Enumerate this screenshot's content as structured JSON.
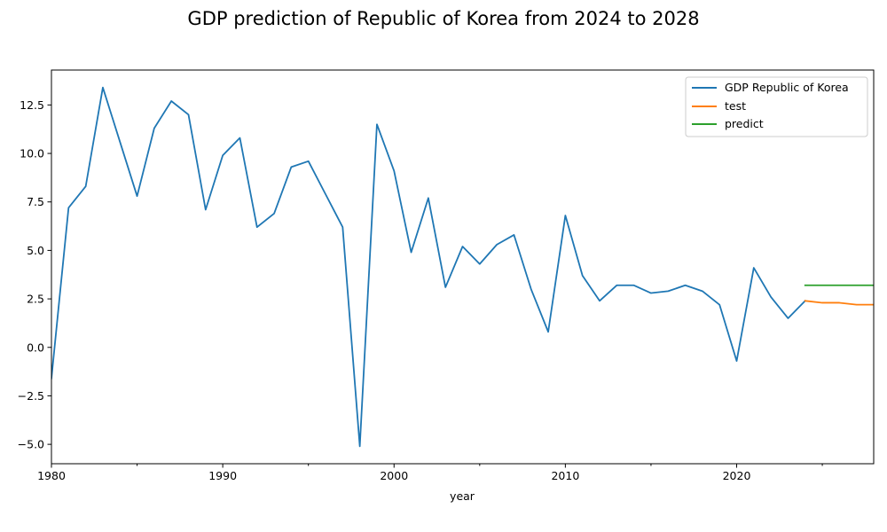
{
  "chart_data": {
    "type": "line",
    "title": "GDP prediction of Republic of Korea from 2024 to 2028",
    "xlabel": "year",
    "ylabel": "",
    "xlim": [
      1980,
      2028
    ],
    "ylim": [
      -6.0,
      14.3
    ],
    "xticks": [
      1980,
      1990,
      2000,
      2010,
      2020
    ],
    "yticks": [
      -5.0,
      -2.5,
      0.0,
      2.5,
      5.0,
      7.5,
      10.0,
      12.5
    ],
    "ytick_labels": [
      "−5.0",
      "−2.5",
      "0.0",
      "2.5",
      "5.0",
      "7.5",
      "10.0",
      "12.5"
    ],
    "grid": false,
    "legend_position": "top-right",
    "series": [
      {
        "name": "GDP Republic of Korea",
        "color": "#1f77b4",
        "x": [
          1980,
          1981,
          1982,
          1983,
          1984,
          1985,
          1986,
          1987,
          1988,
          1989,
          1990,
          1991,
          1992,
          1993,
          1994,
          1995,
          1996,
          1997,
          1998,
          1999,
          2000,
          2001,
          2002,
          2003,
          2004,
          2005,
          2006,
          2007,
          2008,
          2009,
          2010,
          2011,
          2012,
          2013,
          2014,
          2015,
          2016,
          2017,
          2018,
          2019,
          2020,
          2021,
          2022,
          2023,
          2024
        ],
        "values": [
          -1.6,
          7.2,
          8.3,
          13.4,
          10.6,
          7.8,
          11.3,
          12.7,
          12.0,
          7.1,
          9.9,
          10.8,
          6.2,
          6.9,
          9.3,
          9.6,
          7.9,
          6.2,
          -5.1,
          11.5,
          9.1,
          4.9,
          7.7,
          3.1,
          5.2,
          4.3,
          5.3,
          5.8,
          3.0,
          0.8,
          6.8,
          3.7,
          2.4,
          3.2,
          3.2,
          2.8,
          2.9,
          3.2,
          2.9,
          2.2,
          -0.7,
          4.1,
          2.6,
          1.5,
          2.4
        ]
      },
      {
        "name": "test",
        "color": "#ff7f0e",
        "x": [
          2024,
          2025,
          2026,
          2027,
          2028
        ],
        "values": [
          2.4,
          2.3,
          2.3,
          2.2,
          2.2
        ]
      },
      {
        "name": "predict",
        "color": "#2ca02c",
        "x": [
          2024,
          2025,
          2026,
          2027,
          2028
        ],
        "values": [
          3.2,
          3.2,
          3.2,
          3.2,
          3.2
        ]
      }
    ]
  }
}
